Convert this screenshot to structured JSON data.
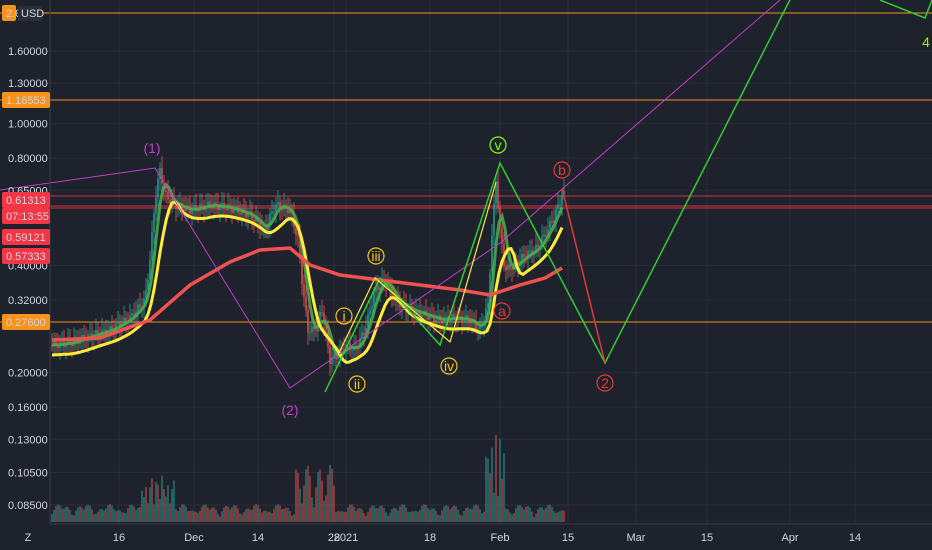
{
  "chart_data": {
    "type": "line",
    "currency": "USD",
    "y_scale": "log",
    "yticks": [
      "1.60000",
      "1.30000",
      "1.00000",
      "0.80000",
      "0.65000",
      "0.40000",
      "0.32000",
      "0.20000",
      "0.16000",
      "0.13000",
      "0.10500",
      "0.08500"
    ],
    "yvals": [
      1.6,
      1.3,
      1.0,
      0.8,
      0.65,
      0.4,
      0.32,
      0.2,
      0.16,
      0.13,
      0.105,
      0.085
    ],
    "xticks": [
      "16",
      "Dec",
      "14",
      "28",
      "2021",
      "18",
      "Feb",
      "15",
      "Mar",
      "15",
      "Apr",
      "14"
    ],
    "x_axis_corner": "Z",
    "horizontal_lines": [
      {
        "label": "2.0",
        "color": "#f7931a"
      },
      {
        "label": "1.16553",
        "color": "#f7931a"
      },
      {
        "label": "0.27600",
        "color": "#f7931a"
      }
    ],
    "price_labels": [
      {
        "label": "0.61313",
        "color": "#f23645"
      },
      {
        "label": "07:13:55",
        "color": "#f23645"
      },
      {
        "label": "0.59121",
        "color": "#f23645"
      },
      {
        "label": "0.57333",
        "color": "#f23645"
      }
    ],
    "wave_labels": [
      {
        "text": "(1)",
        "color": "#c13ec1"
      },
      {
        "text": "(2)",
        "color": "#c13ec1"
      },
      {
        "text": "i",
        "color": "#f5c518"
      },
      {
        "text": "ii",
        "color": "#f5c518"
      },
      {
        "text": "iii",
        "color": "#f5c518"
      },
      {
        "text": "iv",
        "color": "#f5c518"
      },
      {
        "text": "v",
        "color": "#7fff00"
      },
      {
        "text": "a",
        "color": "#e53935"
      },
      {
        "text": "b",
        "color": "#e53935"
      },
      {
        "text": "2",
        "color": "#e53935"
      },
      {
        "text": "4",
        "color": "#7fff00"
      }
    ],
    "colors": {
      "background": "#1e222d",
      "ema_fast": "#ffeb3b",
      "ema_mid": "#4caf50",
      "ema_slow": "#ef5350",
      "projection_up": "#33cc33",
      "projection_down": "#e53935",
      "candle_up": "#26a69a",
      "candle_down": "#ef5350"
    }
  }
}
